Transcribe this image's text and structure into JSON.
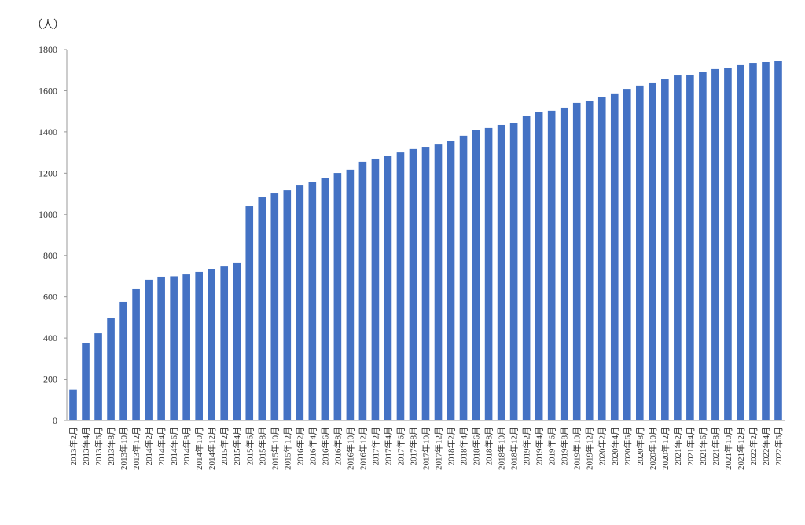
{
  "chart_data": {
    "type": "bar",
    "unit_label": "（人）",
    "categories": [
      "2013年2月",
      "2013年4月",
      "2013年6月",
      "2013年8月",
      "2013年10月",
      "2013年12月",
      "2014年2月",
      "2014年4月",
      "2014年6月",
      "2014年8月",
      "2014年10月",
      "2014年12月",
      "2015年2月",
      "2015年4月",
      "2015年6月",
      "2015年8月",
      "2015年10月",
      "2015年12月",
      "2016年2月",
      "2016年4月",
      "2016年6月",
      "2016年8月",
      "2016年10月",
      "2016年12月",
      "2017年2月",
      "2017年4月",
      "2017年6月",
      "2017年8月",
      "2017年10月",
      "2017年12月",
      "2018年2月",
      "2018年4月",
      "2018年6月",
      "2018年8月",
      "2018年10月",
      "2018年12月",
      "2019年2月",
      "2019年4月",
      "2019年6月",
      "2019年8月",
      "2019年10月",
      "2019年12月",
      "2020年2月",
      "2020年4月",
      "2020年6月",
      "2020年8月",
      "2020年10月",
      "2020年12月",
      "2021年2月",
      "2021年4月",
      "2021年6月",
      "2021年8月",
      "2021年10月",
      "2021年12月",
      "2022年2月",
      "2022年4月",
      "2022年6月"
    ],
    "values": [
      150,
      375,
      423,
      496,
      576,
      637,
      683,
      698,
      700,
      709,
      721,
      736,
      747,
      763,
      1041,
      1083,
      1102,
      1117,
      1140,
      1159,
      1178,
      1201,
      1217,
      1255,
      1270,
      1285,
      1300,
      1320,
      1327,
      1342,
      1354,
      1381,
      1411,
      1419,
      1434,
      1442,
      1476,
      1495,
      1503,
      1518,
      1541,
      1552,
      1571,
      1587,
      1609,
      1625,
      1640,
      1655,
      1674,
      1678,
      1693,
      1705,
      1712,
      1724,
      1735,
      1739,
      1743
    ],
    "color": "#4472c4",
    "ylim": [
      0,
      1800
    ],
    "yticks": [
      0,
      200,
      400,
      600,
      800,
      1000,
      1200,
      1400,
      1600,
      1800
    ],
    "grid": false
  }
}
